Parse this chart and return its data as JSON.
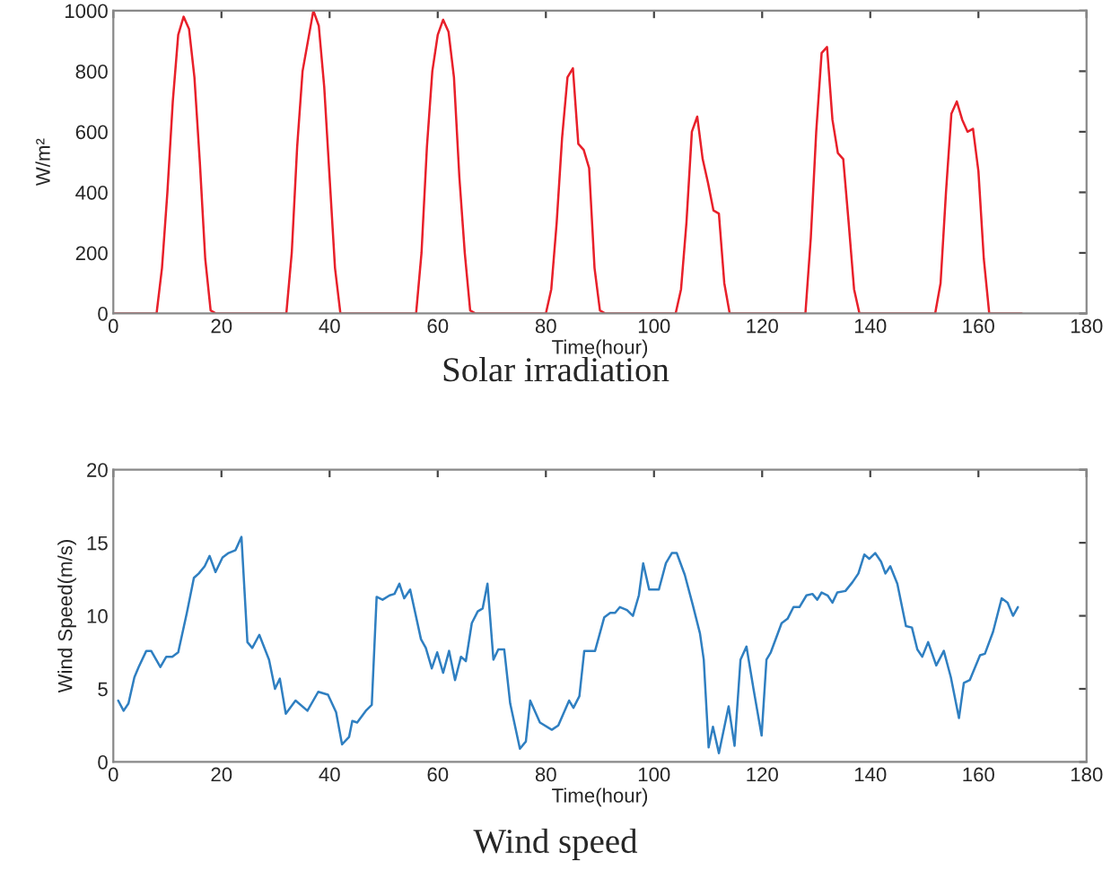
{
  "chart_data": [
    {
      "type": "line",
      "title": "Solar irradiation",
      "xlabel": "Time(hour)",
      "ylabel": "W/m²",
      "xlim": [
        0,
        180
      ],
      "xticks": [
        0,
        20,
        40,
        60,
        80,
        100,
        120,
        140,
        160,
        180
      ],
      "ylim": [
        0,
        1000
      ],
      "yticks": [
        0,
        200,
        400,
        600,
        800,
        1000
      ],
      "grid": false,
      "legend": false,
      "marker": "none",
      "line_style": "solid",
      "series": [
        {
          "color": "#e8202a",
          "x": [
            0,
            8,
            9,
            10,
            11,
            12,
            13,
            14,
            15,
            16,
            17,
            18,
            19,
            32,
            33,
            34,
            35,
            36,
            37,
            38,
            39,
            40,
            41,
            42,
            56,
            57,
            58,
            59,
            60,
            61,
            62,
            63,
            64,
            65,
            66,
            67,
            80,
            81,
            82,
            83,
            84,
            85,
            86,
            87,
            88,
            89,
            90,
            91,
            104,
            105,
            106,
            107,
            108,
            109,
            110,
            111,
            112,
            113,
            114,
            128,
            129,
            130,
            131,
            132,
            133,
            134,
            135,
            136,
            137,
            138,
            152,
            153,
            154,
            155,
            156,
            157,
            158,
            159,
            160,
            161,
            162,
            168
          ],
          "values": [
            0,
            0,
            150,
            400,
            700,
            920,
            980,
            940,
            780,
            500,
            180,
            10,
            0,
            0,
            200,
            550,
            800,
            900,
            1000,
            950,
            750,
            450,
            150,
            0,
            0,
            200,
            550,
            800,
            920,
            970,
            930,
            780,
            450,
            200,
            10,
            0,
            0,
            80,
            300,
            580,
            780,
            810,
            560,
            540,
            480,
            150,
            10,
            0,
            0,
            80,
            300,
            600,
            650,
            510,
            430,
            340,
            330,
            100,
            0,
            0,
            250,
            600,
            860,
            880,
            640,
            530,
            510,
            300,
            80,
            0,
            0,
            100,
            400,
            660,
            700,
            640,
            600,
            610,
            470,
            180,
            0,
            0
          ]
        }
      ]
    },
    {
      "type": "line",
      "title": "Wind speed",
      "xlabel": "Time(hour)",
      "ylabel": "Wind Speed(m/s)",
      "xlim": [
        0,
        180
      ],
      "xticks": [
        0,
        20,
        40,
        60,
        80,
        100,
        120,
        140,
        160,
        180
      ],
      "ylim": [
        0,
        20
      ],
      "yticks": [
        0,
        5,
        10,
        15,
        20
      ],
      "grid": false,
      "legend": false,
      "marker": "none",
      "line_style": "solid",
      "series": [
        {
          "color": "#2f7fc1",
          "x": [
            0.9,
            1.9,
            2.8,
            3.9,
            4.7,
            6.1,
            7,
            8.7,
            9.8,
            10.9,
            12,
            13.6,
            14.9,
            15.8,
            16.9,
            17.8,
            18.9,
            20.2,
            21.3,
            22.6,
            23.7,
            24.8,
            25.7,
            27,
            28.8,
            29.9,
            30.8,
            31.9,
            33.7,
            35.9,
            37.9,
            39.7,
            41.2,
            42.3,
            43.6,
            44.2,
            45.1,
            46.7,
            47.8,
            48.7,
            49.8,
            51.1,
            52,
            52.9,
            53.8,
            54.9,
            56.9,
            57.8,
            58.9,
            59.9,
            61,
            62.1,
            63.2,
            64.3,
            65.2,
            66.3,
            67.4,
            68.3,
            69.2,
            70.3,
            71.2,
            72.3,
            73.4,
            75.2,
            76.3,
            77.1,
            78.9,
            81.1,
            82.3,
            84.3,
            85.1,
            86.2,
            87.1,
            89.1,
            90.8,
            91.9,
            92.8,
            93.7,
            95,
            96.1,
            97.2,
            98,
            99.1,
            100.9,
            102.2,
            103.3,
            104.2,
            105.7,
            107.2,
            108.5,
            109.2,
            110.1,
            110.9,
            112,
            113.8,
            114.9,
            116,
            117.1,
            118.4,
            119.9,
            120.8,
            121.6,
            123.6,
            124.7,
            125.8,
            126.9,
            128.2,
            129.3,
            130.2,
            131,
            132.1,
            133,
            133.9,
            135.4,
            136.7,
            137.8,
            138.9,
            139.8,
            140.9,
            142,
            142.8,
            143.7,
            145,
            146.6,
            147.7,
            148.7,
            149.6,
            150.7,
            152.2,
            153.6,
            154.9,
            156.4,
            157.3,
            158.4,
            160.3,
            161.2,
            162.7,
            164.3,
            165.4,
            166.4,
            167.3
          ],
          "values": [
            4.2,
            3.5,
            4.0,
            5.8,
            6.5,
            7.6,
            7.6,
            6.5,
            7.2,
            7.2,
            7.5,
            10.2,
            12.6,
            12.9,
            13.4,
            14.1,
            13.0,
            14.0,
            14.3,
            14.5,
            15.4,
            8.2,
            7.8,
            8.7,
            7.0,
            5.0,
            5.7,
            3.3,
            4.2,
            3.5,
            4.8,
            4.6,
            3.4,
            1.2,
            1.7,
            2.8,
            2.7,
            3.5,
            3.9,
            11.3,
            11.1,
            11.4,
            11.5,
            12.2,
            11.2,
            11.8,
            8.4,
            7.8,
            6.4,
            7.5,
            6.1,
            7.6,
            5.6,
            7.2,
            6.9,
            9.5,
            10.3,
            10.5,
            12.2,
            7.0,
            7.7,
            7.7,
            4.0,
            0.9,
            1.4,
            4.2,
            2.7,
            2.2,
            2.5,
            4.2,
            3.7,
            4.5,
            7.6,
            7.6,
            9.9,
            10.2,
            10.2,
            10.6,
            10.4,
            10.0,
            11.4,
            13.6,
            11.8,
            11.8,
            13.6,
            14.3,
            14.3,
            12.8,
            10.7,
            8.8,
            7.0,
            1.0,
            2.4,
            0.6,
            3.8,
            1.1,
            7.0,
            7.9,
            5.0,
            1.8,
            7.0,
            7.5,
            9.5,
            9.8,
            10.6,
            10.6,
            11.4,
            11.5,
            11.1,
            11.6,
            11.4,
            10.9,
            11.6,
            11.7,
            12.3,
            12.9,
            14.2,
            13.9,
            14.3,
            13.7,
            12.9,
            13.4,
            12.2,
            9.3,
            9.2,
            7.7,
            7.2,
            8.2,
            6.6,
            7.6,
            5.8,
            3.0,
            5.4,
            5.6,
            7.3,
            7.4,
            8.9,
            11.2,
            10.9,
            10.0,
            10.6
          ]
        }
      ]
    }
  ]
}
